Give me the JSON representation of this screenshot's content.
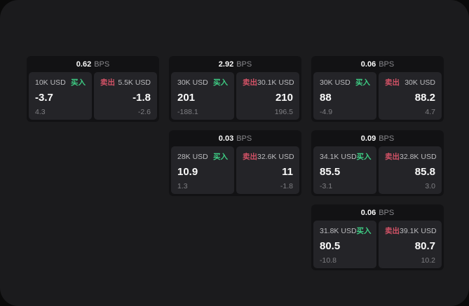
{
  "labels": {
    "bps_unit": "BPS",
    "buy": "买入",
    "sell": "卖出"
  },
  "colors": {
    "outer_bg": "#0a0a0a",
    "panel_bg": "#1b1b1d",
    "card_bg": "#121214",
    "tile_bg": "#242428",
    "text_primary": "#fafafa",
    "text_secondary": "#bcbcbf",
    "text_muted": "#7f7f83",
    "buy_green": "#3ecd84",
    "sell_red": "#d25266"
  },
  "cards": [
    {
      "bps": "0.62",
      "buy": {
        "amount": "10K USD",
        "value": "-3.7",
        "sub": "4.3"
      },
      "sell": {
        "amount": "5.5K USD",
        "value": "-1.8",
        "sub": "-2.6"
      }
    },
    {
      "bps": "2.92",
      "buy": {
        "amount": "30K USD",
        "value": "201",
        "sub": "-188.1"
      },
      "sell": {
        "amount": "30.1K USD",
        "value": "210",
        "sub": "196.5"
      }
    },
    {
      "bps": "0.06",
      "buy": {
        "amount": "30K USD",
        "value": "88",
        "sub": "-4.9"
      },
      "sell": {
        "amount": "30K USD",
        "value": "88.2",
        "sub": "4.7"
      }
    },
    {
      "bps": "0.03",
      "buy": {
        "amount": "28K USD",
        "value": "10.9",
        "sub": "1.3"
      },
      "sell": {
        "amount": "32.6K USD",
        "value": "11",
        "sub": "-1.8"
      }
    },
    {
      "bps": "0.09",
      "buy": {
        "amount": "34.1K USD",
        "value": "85.5",
        "sub": "-3.1"
      },
      "sell": {
        "amount": "32.8K USD",
        "value": "85.8",
        "sub": "3.0"
      }
    },
    {
      "bps": "0.06",
      "buy": {
        "amount": "31.8K USD",
        "value": "80.5",
        "sub": "-10.8"
      },
      "sell": {
        "amount": "39.1K USD",
        "value": "80.7",
        "sub": "10.2"
      }
    }
  ]
}
